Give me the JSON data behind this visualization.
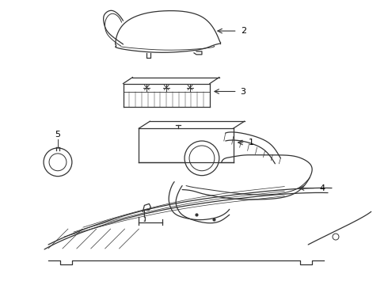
{
  "background_color": "#ffffff",
  "line_color": "#333333",
  "label_color": "#000000",
  "lw": 0.9,
  "fig_w": 4.9,
  "fig_h": 3.6,
  "dpi": 100
}
